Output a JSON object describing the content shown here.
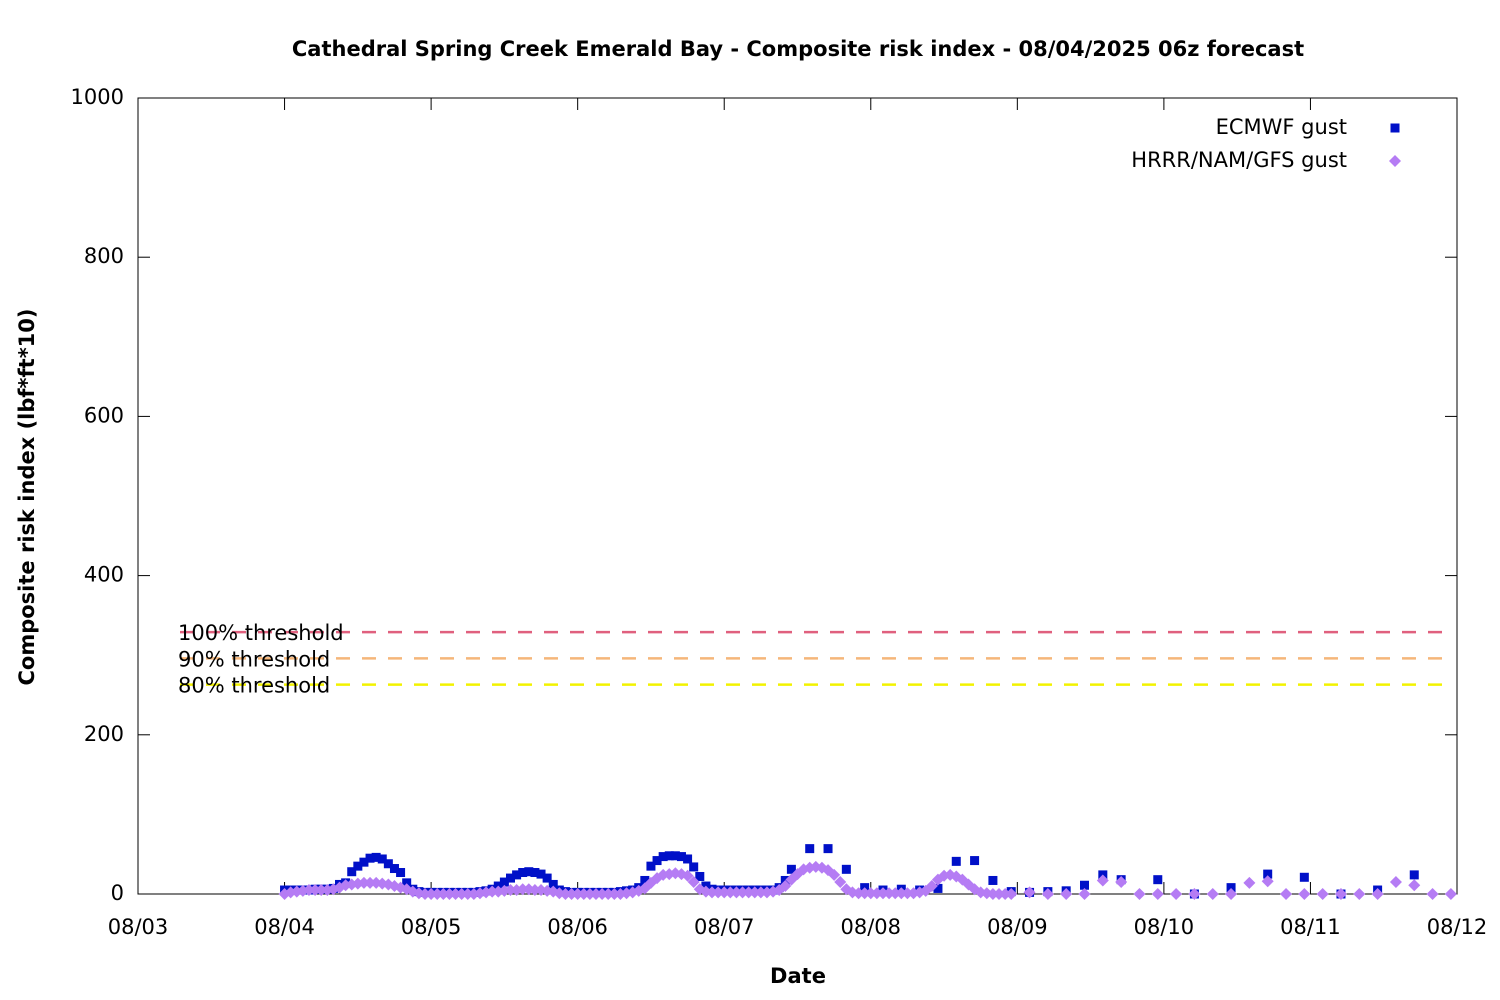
{
  "chart_data": {
    "type": "scatter",
    "title": "Cathedral Spring Creek Emerald Bay - Composite risk index - 08/04/2025 06z forecast",
    "xlabel": "Date",
    "ylabel": "Composite risk index (lbf*ft*10)",
    "xlim": [
      0,
      216
    ],
    "ylim": [
      0,
      1000
    ],
    "xticks": [
      {
        "value": 0,
        "label": "08/03"
      },
      {
        "value": 24,
        "label": "08/04"
      },
      {
        "value": 48,
        "label": "08/05"
      },
      {
        "value": 72,
        "label": "08/06"
      },
      {
        "value": 96,
        "label": "08/07"
      },
      {
        "value": 120,
        "label": "08/08"
      },
      {
        "value": 144,
        "label": "08/09"
      },
      {
        "value": 168,
        "label": "08/10"
      },
      {
        "value": 192,
        "label": "08/11"
      },
      {
        "value": 216,
        "label": "08/12"
      }
    ],
    "yticks": [
      0,
      200,
      400,
      600,
      800,
      1000
    ],
    "legend": "top-right",
    "thresholds": [
      {
        "label": "100% threshold",
        "value": 329,
        "color": "#e0607e"
      },
      {
        "label": "90% threshold",
        "value": 296,
        "color": "#f5b67a"
      },
      {
        "label": "80% threshold",
        "value": 263,
        "color": "#f2f200"
      }
    ],
    "series": [
      {
        "name": "ECMWF gust",
        "color": "#0010c8",
        "marker": "square",
        "x": [
          24,
          25,
          26,
          27,
          28,
          29,
          30,
          31,
          32,
          33,
          34,
          35,
          36,
          37,
          38,
          39,
          40,
          41,
          42,
          43,
          44,
          45,
          46,
          47,
          48,
          49,
          50,
          51,
          52,
          53,
          54,
          55,
          56,
          57,
          58,
          59,
          60,
          61,
          62,
          63,
          64,
          65,
          66,
          67,
          68,
          69,
          70,
          71,
          72,
          73,
          74,
          75,
          76,
          77,
          78,
          79,
          80,
          81,
          82,
          83,
          84,
          85,
          86,
          87,
          88,
          89,
          90,
          91,
          92,
          93,
          94,
          95,
          96,
          97,
          98,
          99,
          100,
          101,
          102,
          103,
          104,
          105,
          106,
          107,
          110,
          113,
          116,
          119,
          122,
          125,
          128,
          131,
          134,
          137,
          140,
          143,
          146,
          149,
          152,
          155,
          158,
          161,
          167,
          173,
          179,
          185,
          191,
          197,
          203,
          209
        ],
        "values": [
          5,
          5,
          5,
          5,
          5,
          6,
          6,
          6,
          7,
          12,
          14,
          28,
          35,
          40,
          45,
          46,
          44,
          38,
          32,
          27,
          14,
          6,
          3,
          2,
          2,
          2,
          2,
          2,
          2,
          2,
          2,
          2,
          3,
          4,
          6,
          10,
          15,
          20,
          24,
          27,
          28,
          27,
          25,
          20,
          12,
          5,
          3,
          2,
          2,
          2,
          2,
          2,
          2,
          2,
          2,
          3,
          4,
          5,
          8,
          17,
          35,
          42,
          47,
          48,
          48,
          47,
          44,
          34,
          22,
          10,
          6,
          5,
          5,
          5,
          5,
          5,
          5,
          5,
          5,
          5,
          5,
          8,
          17,
          31,
          57,
          57,
          31,
          8,
          5,
          6,
          5,
          7,
          41,
          42,
          17,
          3,
          2,
          3,
          4,
          11,
          24,
          18,
          18,
          0,
          8,
          25,
          21,
          0,
          5,
          24
        ]
      },
      {
        "name": "HRRR/NAM/GFS gust",
        "color": "#b57cf4",
        "marker": "diamond",
        "x": [
          24,
          25,
          26,
          27,
          28,
          29,
          30,
          31,
          32,
          33,
          34,
          35,
          36,
          37,
          38,
          39,
          40,
          41,
          42,
          43,
          44,
          45,
          46,
          47,
          48,
          49,
          50,
          51,
          52,
          53,
          54,
          55,
          56,
          57,
          58,
          59,
          60,
          61,
          62,
          63,
          64,
          65,
          66,
          67,
          68,
          69,
          70,
          71,
          72,
          73,
          74,
          75,
          76,
          77,
          78,
          79,
          80,
          81,
          82,
          83,
          84,
          85,
          86,
          87,
          88,
          89,
          90,
          91,
          92,
          93,
          94,
          95,
          96,
          97,
          98,
          99,
          100,
          101,
          102,
          103,
          104,
          105,
          106,
          107,
          108,
          109,
          110,
          111,
          112,
          113,
          114,
          115,
          116,
          117,
          118,
          119,
          120,
          121,
          122,
          123,
          124,
          125,
          126,
          127,
          128,
          129,
          130,
          131,
          132,
          133,
          134,
          135,
          136,
          137,
          138,
          139,
          140,
          141,
          142,
          143,
          146,
          149,
          152,
          155,
          158,
          161,
          164,
          167,
          170,
          173,
          176,
          179,
          182,
          185,
          188,
          191,
          194,
          197,
          200,
          203,
          206,
          209,
          212,
          215
        ],
        "values": [
          0,
          2,
          3,
          4,
          5,
          5,
          5,
          5,
          6,
          8,
          11,
          12,
          13,
          14,
          14,
          14,
          13,
          12,
          10,
          8,
          6,
          3,
          1,
          0,
          0,
          0,
          0,
          0,
          0,
          0,
          0,
          0,
          1,
          2,
          3,
          3,
          4,
          5,
          5,
          6,
          6,
          5,
          5,
          4,
          3,
          1,
          0,
          0,
          0,
          0,
          0,
          0,
          0,
          0,
          0,
          0,
          1,
          2,
          4,
          7,
          14,
          20,
          24,
          25,
          26,
          25,
          23,
          15,
          6,
          3,
          2,
          2,
          2,
          2,
          2,
          2,
          2,
          2,
          2,
          2,
          3,
          5,
          10,
          18,
          25,
          31,
          33,
          34,
          33,
          30,
          24,
          15,
          6,
          2,
          1,
          1,
          1,
          1,
          1,
          1,
          1,
          1,
          1,
          1,
          2,
          4,
          10,
          18,
          23,
          24,
          22,
          18,
          12,
          6,
          2,
          1,
          0,
          0,
          0,
          0,
          2,
          0,
          0,
          0,
          17,
          15,
          0,
          0,
          0,
          0,
          0,
          0,
          14,
          16,
          0,
          0,
          0,
          0,
          0,
          0,
          15,
          11,
          0,
          0
        ]
      }
    ]
  }
}
